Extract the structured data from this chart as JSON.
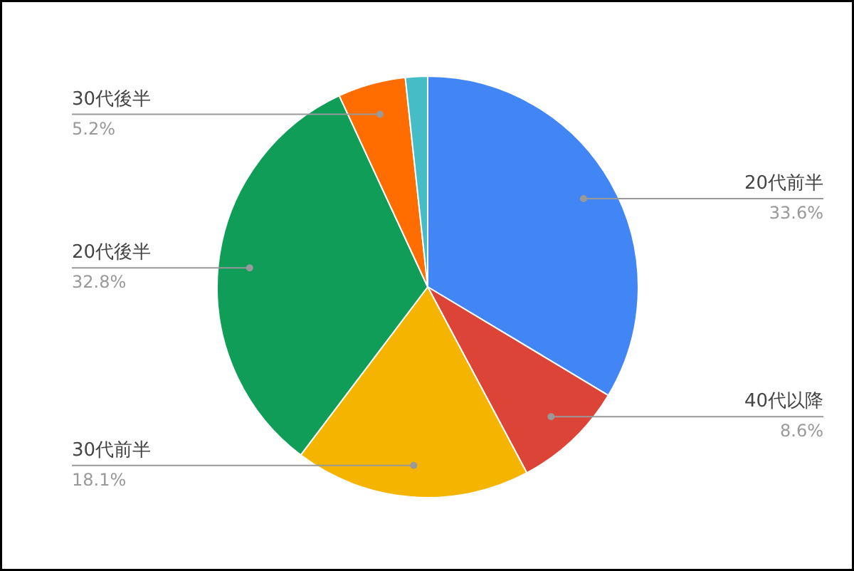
{
  "chart_data": {
    "type": "pie",
    "categories": [
      "20代前半",
      "40代以降",
      "30代前半",
      "20代後半",
      "30代後半",
      null
    ],
    "values": [
      33.6,
      8.6,
      18.1,
      32.8,
      5.2,
      1.7
    ],
    "colors": [
      "#4285f4",
      "#db4437",
      "#f4b400",
      "#0f9d58",
      "#ff6d01",
      "#46bdc6"
    ],
    "value_labels": [
      "33.6%",
      "8.6%",
      "18.1%",
      "32.8%",
      "5.2%",
      null
    ]
  }
}
